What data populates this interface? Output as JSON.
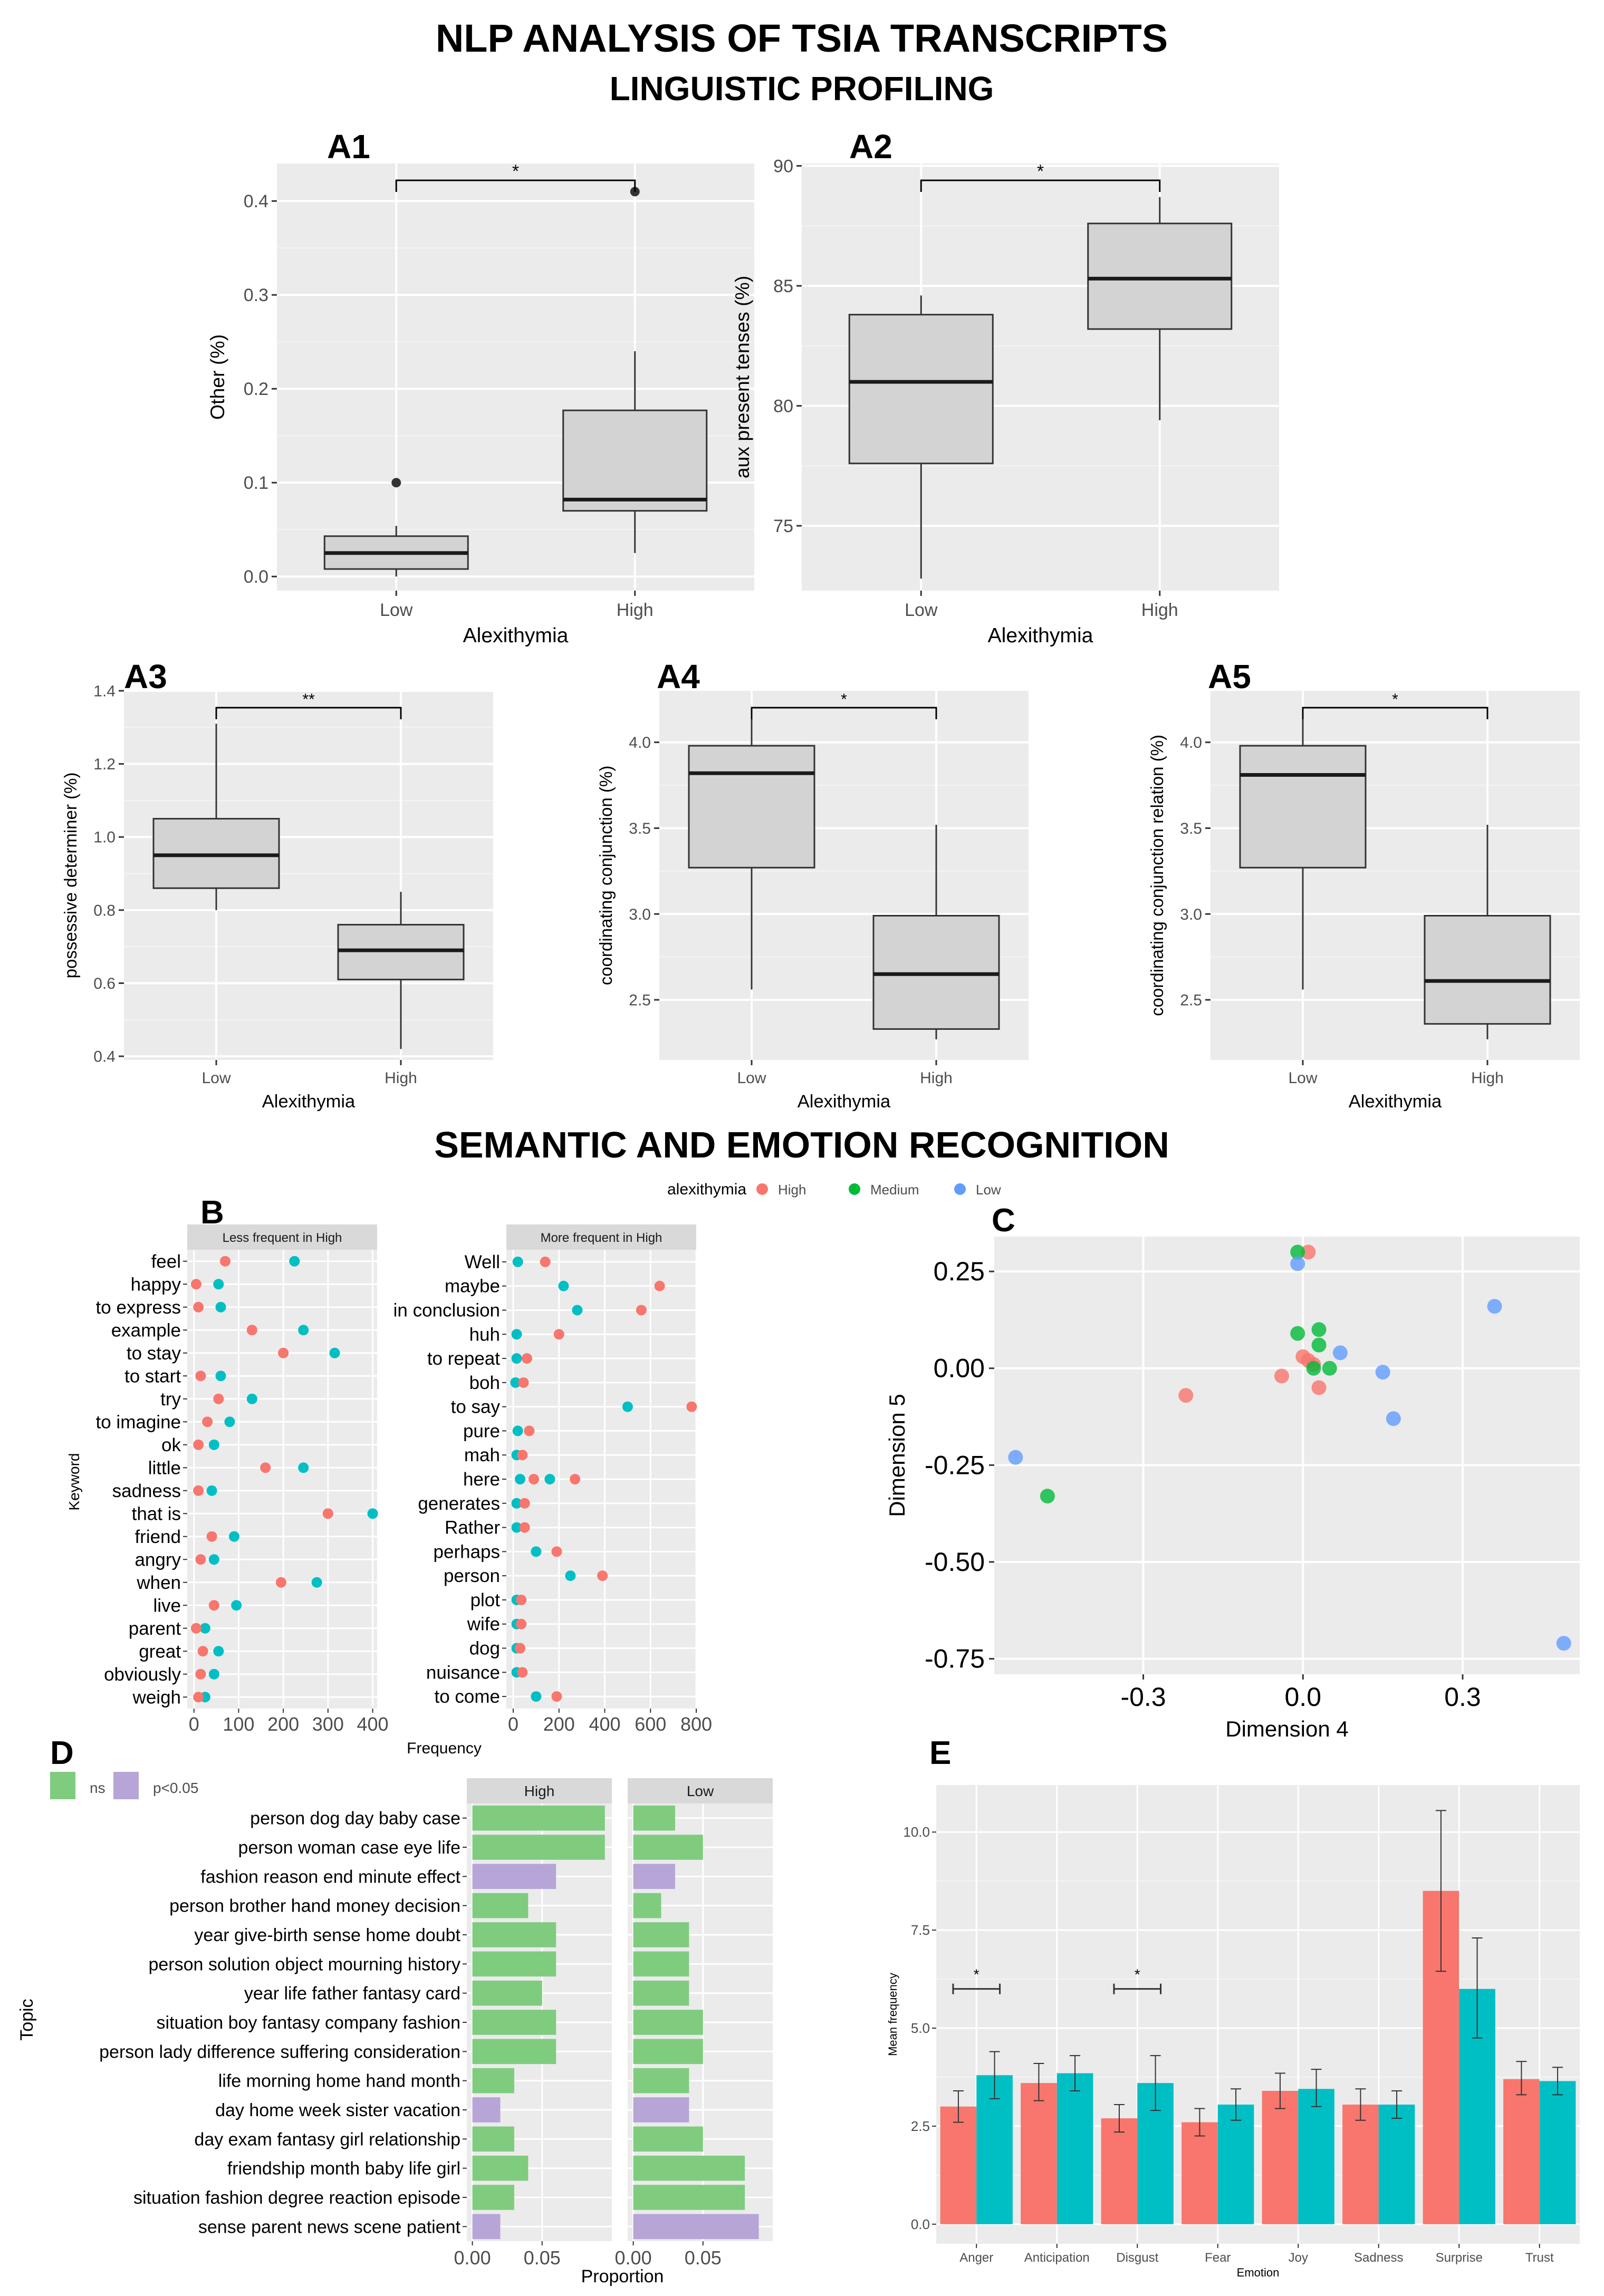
{
  "titles": {
    "main": "NLP ANALYSIS  OF TSIA TRANSCRIPTS",
    "sub": "LINGUISTIC PROFILING",
    "section2": "SEMANTIC AND EMOTION RECOGNITION"
  },
  "colors": {
    "panel_bg": "#ebebeb",
    "box_fill": "#d3d3d3",
    "high": "#f8766d",
    "medium": "#00ba38",
    "low": "#619cff",
    "teal": "#00bfc4",
    "ns": "#7fcc7f",
    "sig": "#b6a5d6"
  },
  "chart_data": [
    {
      "id": "A1",
      "type": "box",
      "panel_label": "A1",
      "xlabel": "Alexithymia",
      "ylabel": "Other (%)",
      "ylim": [
        -0.015,
        0.44
      ],
      "yticks": [
        0.0,
        0.1,
        0.2,
        0.3,
        0.4
      ],
      "tick_labels": [
        "0.0",
        "0.1",
        "0.2",
        "0.3",
        "0.4"
      ],
      "categories": [
        "Low",
        "High"
      ],
      "boxes": [
        {
          "name": "Low",
          "min": 0.0,
          "q1": 0.008,
          "median": 0.025,
          "q3": 0.043,
          "max": 0.054,
          "outliers": [
            0.1
          ]
        },
        {
          "name": "High",
          "min": 0.025,
          "q1": 0.07,
          "median": 0.082,
          "q3": 0.177,
          "max": 0.24,
          "outliers": [
            0.41
          ]
        }
      ],
      "significance": "*"
    },
    {
      "id": "A2",
      "type": "box",
      "panel_label": "A2",
      "xlabel": "Alexithymia",
      "ylabel": "aux present tenses (%)",
      "ylim": [
        72.3,
        90.1
      ],
      "yticks": [
        75,
        80,
        85,
        90
      ],
      "tick_labels": [
        "75",
        "80",
        "85",
        "90"
      ],
      "categories": [
        "Low",
        "High"
      ],
      "boxes": [
        {
          "name": "Low",
          "min": 72.8,
          "q1": 77.6,
          "median": 81.0,
          "q3": 83.8,
          "max": 84.6,
          "outliers": []
        },
        {
          "name": "High",
          "min": 79.4,
          "q1": 83.2,
          "median": 85.3,
          "q3": 87.6,
          "max": 88.7,
          "outliers": []
        }
      ],
      "significance": "*"
    },
    {
      "id": "A3",
      "type": "box",
      "panel_label": "A3",
      "xlabel": "Alexithymia",
      "ylabel": "possessive determiner (%)",
      "ylim": [
        0.39,
        1.4
      ],
      "yticks": [
        0.4,
        0.6,
        0.8,
        1.0,
        1.2,
        1.4
      ],
      "tick_labels": [
        "0.4",
        "0.6",
        "0.8",
        "1.0",
        "1.2",
        "1.4"
      ],
      "categories": [
        "Low",
        "High"
      ],
      "boxes": [
        {
          "name": "Low",
          "min": 0.8,
          "q1": 0.86,
          "median": 0.95,
          "q3": 1.05,
          "max": 1.31,
          "outliers": []
        },
        {
          "name": "High",
          "min": 0.42,
          "q1": 0.61,
          "median": 0.69,
          "q3": 0.76,
          "max": 0.85,
          "outliers": []
        }
      ],
      "significance": "**"
    },
    {
      "id": "A4",
      "type": "box",
      "panel_label": "A4",
      "xlabel": "Alexithymia",
      "ylabel": "coordinating conjunction (%)",
      "ylim": [
        2.15,
        4.3
      ],
      "yticks": [
        2.5,
        3.0,
        3.5,
        4.0
      ],
      "tick_labels": [
        "2.5",
        "3.0",
        "3.5",
        "4.0"
      ],
      "categories": [
        "Low",
        "High"
      ],
      "boxes": [
        {
          "name": "Low",
          "min": 2.56,
          "q1": 3.27,
          "median": 3.82,
          "q3": 3.98,
          "max": 4.2,
          "outliers": []
        },
        {
          "name": "High",
          "min": 2.27,
          "q1": 2.33,
          "median": 2.65,
          "q3": 2.99,
          "max": 3.52,
          "outliers": []
        }
      ],
      "significance": "*"
    },
    {
      "id": "A5",
      "type": "box",
      "panel_label": "A5",
      "xlabel": "Alexithymia",
      "ylabel": "coordinating conjunction relation (%)",
      "ylim": [
        2.15,
        4.3
      ],
      "yticks": [
        2.5,
        3.0,
        3.5,
        4.0
      ],
      "tick_labels": [
        "2.5",
        "3.0",
        "3.5",
        "4.0"
      ],
      "categories": [
        "Low",
        "High"
      ],
      "boxes": [
        {
          "name": "Low",
          "min": 2.56,
          "q1": 3.27,
          "median": 3.81,
          "q3": 3.98,
          "max": 4.2,
          "outliers": []
        },
        {
          "name": "High",
          "min": 2.27,
          "q1": 2.36,
          "median": 2.61,
          "q3": 2.99,
          "max": 3.52,
          "outliers": []
        }
      ],
      "significance": "*"
    },
    {
      "id": "B",
      "type": "scatter",
      "panel_label": "B",
      "ylabel": "Keyword",
      "xlabel": "Frequency",
      "legend": {
        "title": "alexithymia",
        "entries": [
          "High",
          "Medium",
          "Low"
        ]
      },
      "facets": [
        {
          "strip": "Less frequent in High",
          "xlim": [
            -15,
            410
          ],
          "xticks": [
            0,
            100,
            200,
            300,
            400
          ],
          "tick_labels": [
            "0",
            "100",
            "200",
            "300",
            "400"
          ],
          "keywords": [
            "feel",
            "happy",
            "to express",
            "example",
            "to stay",
            "to start",
            "try",
            "to imagine",
            "ok",
            "little",
            "sadness",
            "that is",
            "friend",
            "angry",
            "when",
            "live",
            "parent",
            "great",
            "obviously",
            "weigh"
          ],
          "high": [
            70,
            5,
            10,
            130,
            200,
            15,
            55,
            30,
            10,
            160,
            10,
            300,
            40,
            15,
            195,
            45,
            5,
            20,
            15,
            10
          ],
          "teal": [
            225,
            55,
            60,
            245,
            315,
            60,
            130,
            80,
            45,
            245,
            40,
            400,
            90,
            45,
            275,
            95,
            25,
            55,
            45,
            25
          ]
        },
        {
          "strip": "More frequent in High",
          "xlim": [
            -30,
            800
          ],
          "xticks": [
            0,
            200,
            400,
            600,
            800
          ],
          "tick_labels": [
            "0",
            "200",
            "400",
            "600",
            "800"
          ],
          "keywords": [
            "Well",
            "maybe",
            "in conclusion",
            "huh",
            "to repeat",
            "boh",
            "to say",
            "pure",
            "mah",
            "here",
            "generates",
            "Rather",
            "perhaps",
            "person",
            "plot",
            "wife",
            "dog",
            "nuisance",
            "to come"
          ],
          "high": [
            140,
            640,
            560,
            200,
            60,
            45,
            780,
            70,
            40,
            270,
            50,
            50,
            190,
            390,
            35,
            35,
            30,
            40,
            190
          ],
          "teal": [
            20,
            220,
            280,
            15,
            15,
            10,
            500,
            20,
            15,
            30,
            15,
            15,
            100,
            250,
            15,
            15,
            15,
            15,
            100
          ],
          "teal_extra": [
            {
              "keyword": "here",
              "value": 160
            }
          ],
          "high_extra": [
            {
              "keyword": "here",
              "value": 90
            }
          ]
        }
      ]
    },
    {
      "id": "C",
      "type": "scatter",
      "panel_label": "C",
      "xlabel": "Dimension 4",
      "ylabel": "Dimension 5",
      "xlim": [
        -0.58,
        0.52
      ],
      "ylim": [
        -0.79,
        0.34
      ],
      "xticks": [
        -0.3,
        0.0,
        0.3
      ],
      "xtick_labels": [
        "-0.3",
        "0.0",
        "0.3"
      ],
      "yticks": [
        -0.75,
        -0.5,
        -0.25,
        0.0,
        0.25
      ],
      "ytick_labels": [
        "-0.75",
        "-0.50",
        "-0.25",
        "0.00",
        "0.25"
      ],
      "points": [
        {
          "group": "High",
          "x": 0.01,
          "y": 0.3
        },
        {
          "group": "High",
          "x": -0.22,
          "y": -0.07
        },
        {
          "group": "High",
          "x": -0.04,
          "y": -0.02
        },
        {
          "group": "High",
          "x": 0.0,
          "y": 0.03
        },
        {
          "group": "High",
          "x": 0.01,
          "y": 0.02
        },
        {
          "group": "High",
          "x": 0.03,
          "y": -0.05
        },
        {
          "group": "High",
          "x": 0.02,
          "y": 0.01
        },
        {
          "group": "Medium",
          "x": -0.01,
          "y": 0.3
        },
        {
          "group": "Medium",
          "x": -0.48,
          "y": -0.33
        },
        {
          "group": "Medium",
          "x": -0.01,
          "y": 0.09
        },
        {
          "group": "Medium",
          "x": 0.03,
          "y": 0.1
        },
        {
          "group": "Medium",
          "x": 0.03,
          "y": 0.06
        },
        {
          "group": "Medium",
          "x": 0.05,
          "y": 0.0
        },
        {
          "group": "Medium",
          "x": 0.02,
          "y": 0.0
        },
        {
          "group": "Low",
          "x": -0.01,
          "y": 0.27
        },
        {
          "group": "Low",
          "x": 0.36,
          "y": 0.16
        },
        {
          "group": "Low",
          "x": -0.54,
          "y": -0.23
        },
        {
          "group": "Low",
          "x": 0.15,
          "y": -0.01
        },
        {
          "group": "Low",
          "x": 0.07,
          "y": 0.04
        },
        {
          "group": "Low",
          "x": 0.17,
          "y": -0.13
        },
        {
          "group": "Low",
          "x": 0.49,
          "y": -0.71
        }
      ]
    },
    {
      "id": "D",
      "type": "bar",
      "panel_label": "D",
      "xlabel": "Proportion",
      "ylabel": "Topic",
      "legend": {
        "entries": [
          "ns",
          "p<0.05"
        ]
      },
      "categories": [
        "person dog day baby case",
        "person woman case eye life",
        "fashion reason end minute effect",
        "person brother hand money decision",
        "year give-birth sense home doubt",
        "person solution object mourning history",
        "year life father fantasy card",
        "situation boy fantasy company fashion",
        "person lady difference suffering consideration",
        "life morning home hand month",
        "day home week sister vacation",
        "day exam fantasy girl relationship",
        "friendship month baby life girl",
        "situation fashion degree reaction episode",
        "sense parent news scene patient"
      ],
      "facets": [
        {
          "strip": "High",
          "xlim": [
            -0.004,
            0.1
          ],
          "xticks": [
            0.0,
            0.05
          ],
          "tick_labels": [
            "0.00",
            "0.05"
          ],
          "values": [
            0.095,
            0.095,
            0.06,
            0.04,
            0.06,
            0.06,
            0.05,
            0.06,
            0.06,
            0.03,
            0.02,
            0.03,
            0.04,
            0.03,
            0.02
          ],
          "sig": [
            false,
            false,
            true,
            false,
            false,
            false,
            false,
            false,
            false,
            false,
            true,
            false,
            false,
            false,
            true
          ]
        },
        {
          "strip": "Low",
          "xlim": [
            -0.004,
            0.1
          ],
          "xticks": [
            0.0,
            0.05
          ],
          "tick_labels": [
            "0.00",
            "0.05"
          ],
          "values": [
            0.03,
            0.05,
            0.03,
            0.02,
            0.04,
            0.04,
            0.04,
            0.05,
            0.05,
            0.04,
            0.04,
            0.05,
            0.08,
            0.08,
            0.09
          ],
          "sig": [
            false,
            false,
            true,
            false,
            false,
            false,
            false,
            false,
            false,
            false,
            true,
            false,
            false,
            false,
            true
          ]
        }
      ]
    },
    {
      "id": "E",
      "type": "bar",
      "panel_label": "E",
      "xlabel": "Emotion",
      "ylabel": "Mean frequency",
      "ylim": [
        -0.5,
        11.2
      ],
      "yticks": [
        0.0,
        2.5,
        5.0,
        7.5,
        10.0
      ],
      "tick_labels": [
        "0.0",
        "2.5",
        "5.0",
        "7.5",
        "10.0"
      ],
      "categories": [
        "Anger",
        "Anticipation",
        "Disgust",
        "Fear",
        "Joy",
        "Sadness",
        "Surprise",
        "Trust"
      ],
      "series": [
        {
          "values": [
            3.0,
            3.6,
            2.7,
            2.6,
            3.4,
            3.05,
            8.5,
            3.7
          ],
          "err_low": [
            2.6,
            3.15,
            2.35,
            2.25,
            2.95,
            2.65,
            6.45,
            3.3
          ],
          "err_high": [
            3.4,
            4.1,
            3.05,
            2.95,
            3.85,
            3.45,
            10.55,
            4.15
          ]
        },
        {
          "values": [
            3.8,
            3.85,
            3.6,
            3.05,
            3.45,
            3.05,
            6.0,
            3.65
          ],
          "err_low": [
            3.2,
            3.4,
            2.9,
            2.65,
            3.0,
            2.7,
            4.75,
            3.3
          ],
          "err_high": [
            4.4,
            4.3,
            4.3,
            3.45,
            3.95,
            3.4,
            7.3,
            4.0
          ]
        }
      ],
      "significance": [
        {
          "category": "Anger",
          "label": "*"
        },
        {
          "category": "Disgust",
          "label": "*"
        }
      ]
    }
  ]
}
